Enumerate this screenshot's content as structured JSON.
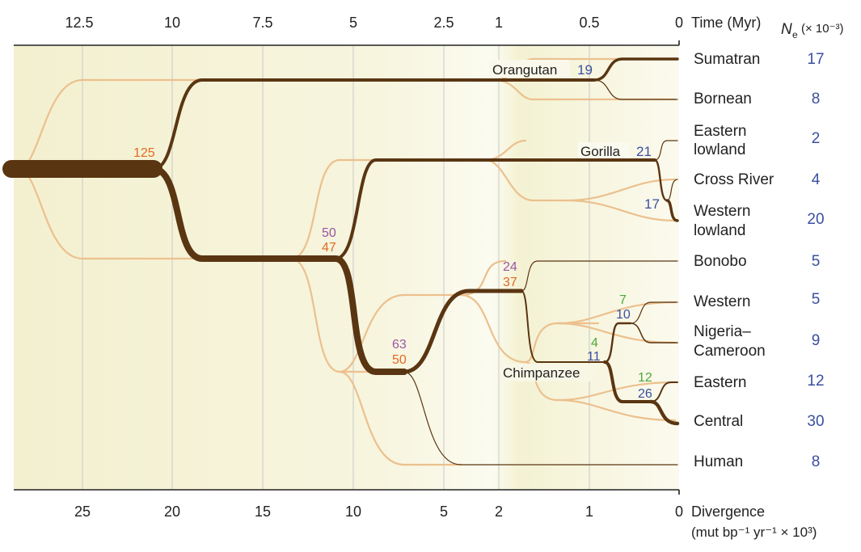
{
  "colors": {
    "lineage_dark": "#5a3512",
    "lineage_light": "#ecc08e",
    "grid": "#c9c9c9",
    "bg_left": "#f4f1d4",
    "bg_right": "#fbfaee",
    "ne_blue": "#3a4fa0",
    "orange": "#e06a22",
    "purple": "#9b57a3",
    "green": "#4aaa3a"
  },
  "top_axis": {
    "ticks": [
      "12.5",
      "10",
      "7.5",
      "5",
      "2.5",
      "1",
      "0.5",
      "0"
    ],
    "title": "Time (Myr)"
  },
  "bottom_axis": {
    "ticks": [
      "25",
      "20",
      "15",
      "10",
      "5",
      "2",
      "1",
      "0"
    ],
    "title": "Divergence",
    "unit": "(mut bp⁻¹ yr⁻¹ × 10³)"
  },
  "ne_header": {
    "symbol": "N",
    "subscript": "e",
    "suffix": "(× 10⁻³)"
  },
  "taxa": [
    {
      "name": "Sumatran",
      "ne": "17"
    },
    {
      "name": "Bornean",
      "ne": "8"
    },
    {
      "name_lines": [
        "Eastern",
        "lowland"
      ],
      "ne": "2"
    },
    {
      "name": "Cross River",
      "ne": "4"
    },
    {
      "name_lines": [
        "Western",
        "lowland"
      ],
      "ne": "20"
    },
    {
      "name": "Bonobo",
      "ne": "5"
    },
    {
      "name": "Western",
      "ne": "5"
    },
    {
      "name_lines": [
        "Nigeria–",
        "Cameroon"
      ],
      "ne": "9"
    },
    {
      "name": "Eastern",
      "ne": "12"
    },
    {
      "name": "Central",
      "ne": "30"
    },
    {
      "name": "Human",
      "ne": "8"
    }
  ],
  "clades": {
    "orangutan": {
      "label": "Orangutan",
      "ne": "19"
    },
    "gorilla": {
      "label": "Gorilla",
      "ne": "21",
      "inner_ne": "17"
    },
    "chimpanzee": {
      "label": "Chimpanzee"
    }
  },
  "internal_values": {
    "root": "125",
    "gorilla_split_purple": "50",
    "gorilla_split_orange": "47",
    "human_split_purple": "63",
    "human_split_orange": "50",
    "bonobo_split_purple": "24",
    "bonobo_split_orange": "37",
    "chimp_green": "4",
    "chimp_blue": "11",
    "western_green": "7",
    "western_blue": "10",
    "eastern_green": "12",
    "eastern_blue": "26"
  }
}
